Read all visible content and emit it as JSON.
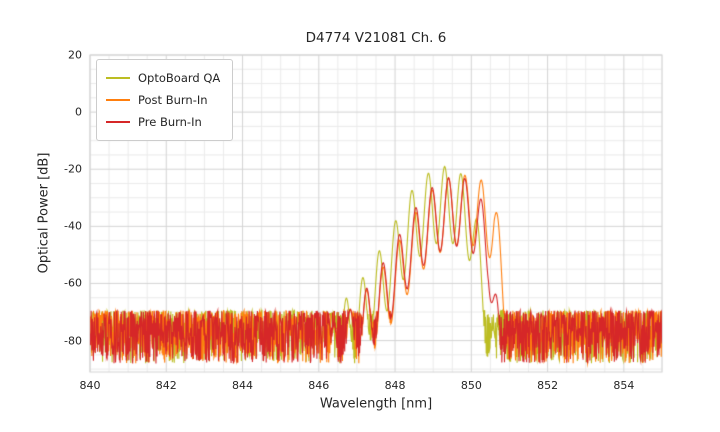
{
  "chart_data": {
    "type": "line",
    "title": "D4774 V21081 Ch. 6",
    "xlabel": "Wavelength [nm]",
    "ylabel": "Optical Power [dB]",
    "xlim": [
      840,
      855
    ],
    "ylim": [
      -91,
      20
    ],
    "xticks": [
      840,
      842,
      844,
      846,
      848,
      850,
      852,
      854
    ],
    "yticks": [
      20,
      0,
      -20,
      -40,
      -60,
      -80
    ],
    "grid": true,
    "minor_grid_x_step_nm": 0.5,
    "minor_grid_y_step_db": 5,
    "legend_position": "upper-left",
    "mode_spacing_nm": 0.43,
    "noise_floor": {
      "top_db": -69.5,
      "bottom_db": -88
    },
    "series": [
      {
        "name": "OptoBoard QA",
        "color": "#bcbd22",
        "phase_nm": 849.3,
        "fringe_depth_db": 26,
        "seed": 11,
        "peak_envelope": [
          [
            845.9,
            -76
          ],
          [
            846.4,
            -69
          ],
          [
            846.9,
            -63
          ],
          [
            847.4,
            -53
          ],
          [
            847.9,
            -41
          ],
          [
            848.4,
            -28
          ],
          [
            848.9,
            -21
          ],
          [
            849.3,
            -19
          ],
          [
            849.7,
            -21
          ],
          [
            850.0,
            -27
          ],
          [
            850.3,
            -48
          ],
          [
            850.5,
            -72
          ],
          [
            850.7,
            -82
          ]
        ]
      },
      {
        "name": "Post Burn-In",
        "color": "#ff7f0e",
        "phase_nm": 849.4,
        "fringe_depth_db": 24,
        "seed": 22,
        "peak_envelope": [
          [
            846.3,
            -76
          ],
          [
            846.9,
            -68
          ],
          [
            847.4,
            -60
          ],
          [
            847.9,
            -50
          ],
          [
            848.4,
            -38
          ],
          [
            848.9,
            -28
          ],
          [
            849.4,
            -23
          ],
          [
            849.9,
            -22
          ],
          [
            850.3,
            -24
          ],
          [
            850.6,
            -29
          ],
          [
            850.85,
            -50
          ],
          [
            851.0,
            -80
          ]
        ]
      },
      {
        "name": "Pre Burn-In",
        "color": "#d62728",
        "phase_nm": 849.4,
        "fringe_depth_db": 24,
        "seed": 33,
        "peak_envelope": [
          [
            846.3,
            -76
          ],
          [
            846.9,
            -68
          ],
          [
            847.4,
            -59
          ],
          [
            847.9,
            -48
          ],
          [
            848.4,
            -36
          ],
          [
            848.9,
            -27
          ],
          [
            849.4,
            -23
          ],
          [
            849.8,
            -23
          ],
          [
            850.1,
            -26
          ],
          [
            850.45,
            -36
          ],
          [
            850.65,
            -62
          ],
          [
            850.8,
            -82
          ]
        ]
      }
    ]
  }
}
